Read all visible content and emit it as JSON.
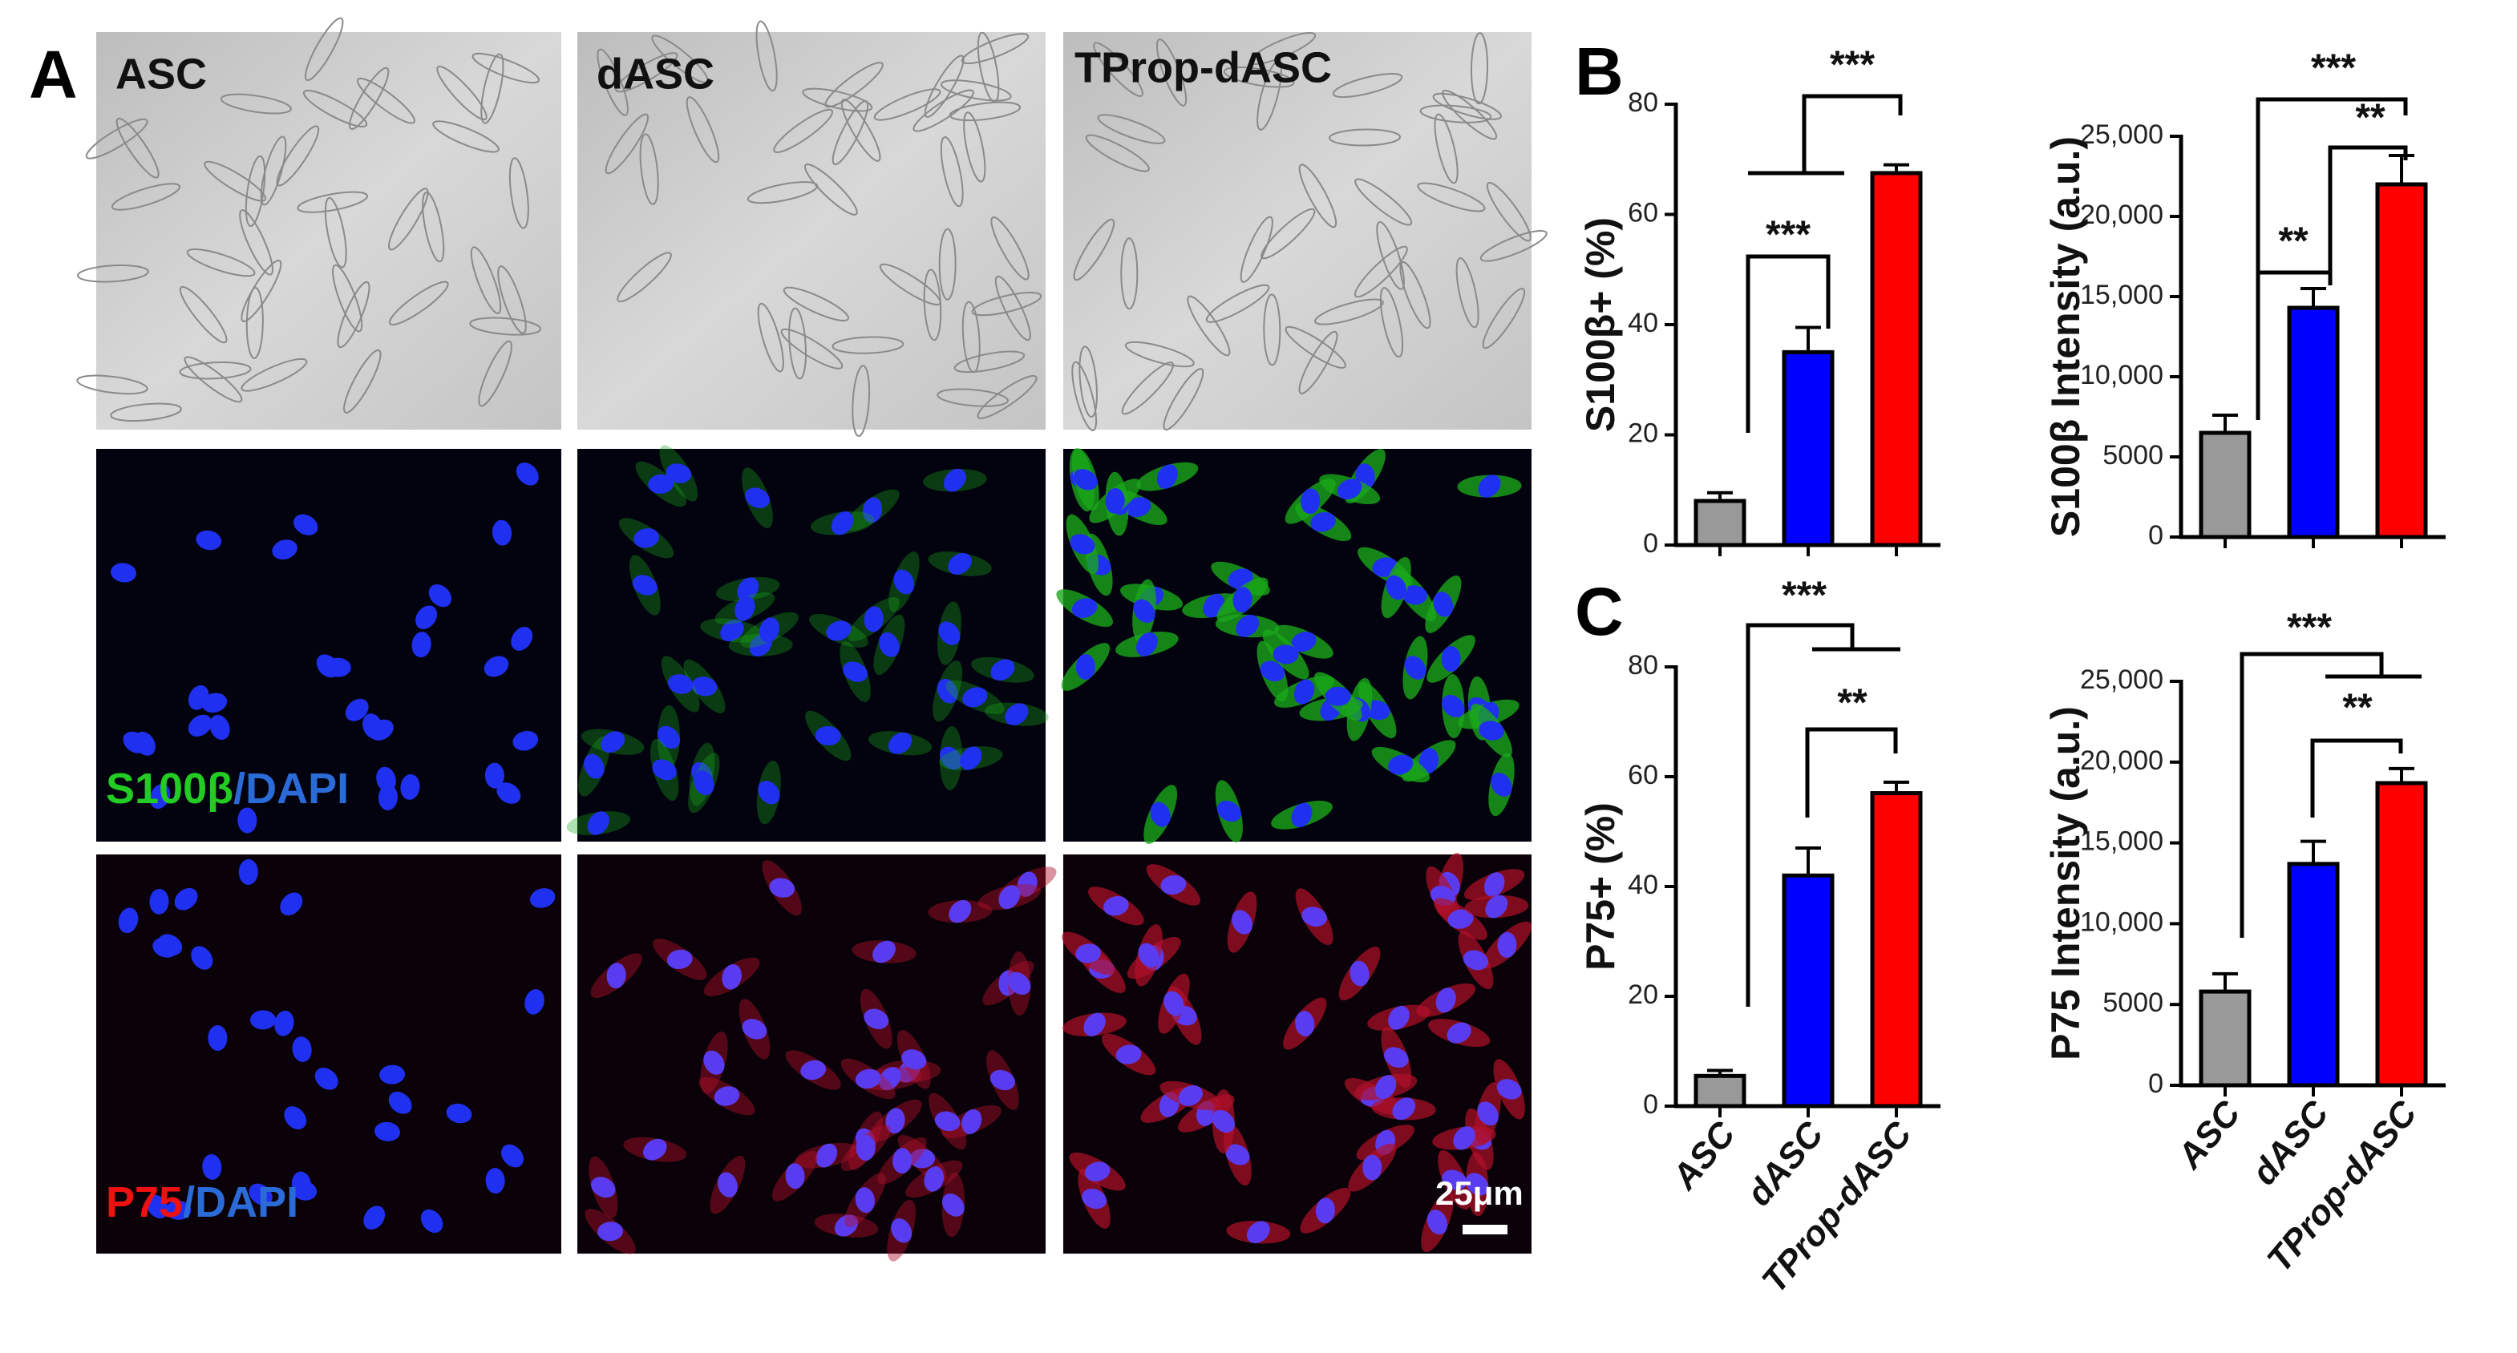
{
  "figure": {
    "panel_labels": [
      "A",
      "B",
      "C"
    ],
    "images": {
      "columns": [
        "ASC",
        "dASC",
        "TProp-dASC"
      ],
      "stain_rows": [
        [
          "S100β",
          "/DAPI"
        ],
        [
          "P75",
          "/DAPI"
        ]
      ],
      "scale_bar": "25μm"
    }
  },
  "chart_data": [
    {
      "type": "bar",
      "y_label": "S100β+ (%)",
      "categories": [
        null,
        null,
        null
      ],
      "values": [
        8,
        35,
        67.5
      ],
      "errors": [
        1.5,
        4.5,
        1.5
      ],
      "colors": [
        "#999999",
        "#0000ff",
        "#ff0000"
      ],
      "ylim": [
        0,
        80
      ],
      "yticks": [
        0,
        20,
        40,
        60,
        80
      ],
      "annotations": [
        "***",
        "***"
      ]
    },
    {
      "type": "bar",
      "y_label": "S100β Intensity (a.u.)",
      "categories": [
        null,
        null,
        null
      ],
      "values": [
        6500,
        14300,
        22000
      ],
      "errors": [
        1100,
        1200,
        1800
      ],
      "colors": [
        "#999999",
        "#0000ff",
        "#ff0000"
      ],
      "ylim": [
        0,
        25000
      ],
      "yticks": [
        0,
        5000,
        {
          "value": 10000,
          "label": "10,000"
        },
        {
          "value": 15000,
          "label": "15,000"
        },
        {
          "value": 20000,
          "label": "20,000"
        },
        {
          "value": 25000,
          "label": "25,000"
        }
      ],
      "annotations": [
        "***",
        "**",
        "**"
      ]
    },
    {
      "type": "bar",
      "y_label": "P75+ (%)",
      "categories": [
        "ASC",
        "dASC",
        "TProp-dASC"
      ],
      "values": [
        5.5,
        42,
        57
      ],
      "errors": [
        1,
        5,
        2
      ],
      "colors": [
        "#999999",
        "#0000ff",
        "#ff0000"
      ],
      "ylim": [
        0,
        80
      ],
      "yticks": [
        0,
        20,
        40,
        60,
        80
      ],
      "annotations": [
        "***",
        "**"
      ]
    },
    {
      "type": "bar",
      "y_label": "P75 Intensity (a.u.)",
      "categories": [
        "ASC",
        "dASC",
        "TProp-dASC"
      ],
      "values": [
        5800,
        13700,
        18700
      ],
      "errors": [
        1100,
        1400,
        900
      ],
      "colors": [
        "#999999",
        "#0000ff",
        "#ff0000"
      ],
      "ylim": [
        0,
        25000
      ],
      "yticks": [
        0,
        5000,
        {
          "value": 10000,
          "label": "10,000"
        },
        {
          "value": 15000,
          "label": "15,000"
        },
        {
          "value": 20000,
          "label": "20,000"
        },
        {
          "value": 25000,
          "label": "25,000"
        }
      ],
      "annotations": [
        "***",
        "**"
      ]
    }
  ]
}
